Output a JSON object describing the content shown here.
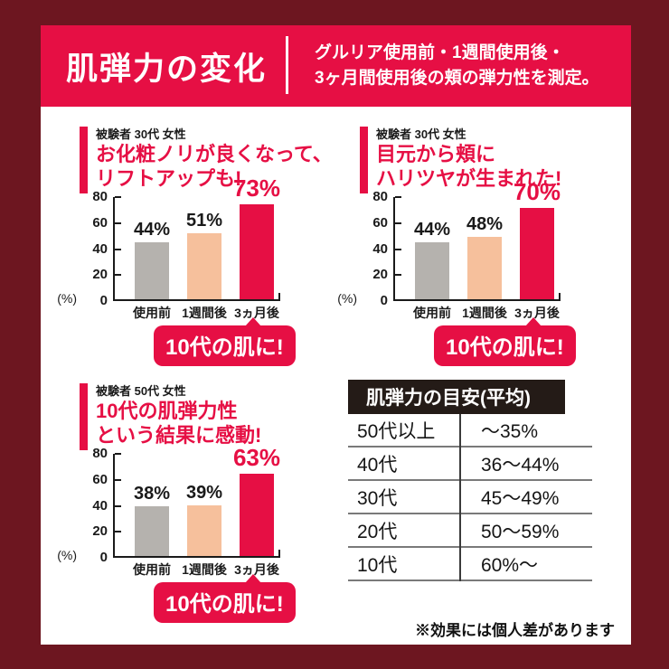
{
  "page": {
    "background_color": "#6d1620",
    "accent_color": "#e60f44",
    "bar_gray": "#b5b2ae",
    "bar_peach": "#f6c09c",
    "header": {
      "title": "肌弾力の変化",
      "description_lines": [
        "グルリア使用前・1週間使用後・",
        "3ヶ月間使用後の頬の弾力性を測定。"
      ]
    },
    "footnote": "※効果には個人差があります"
  },
  "chart_data": [
    {
      "type": "bar",
      "subject": "被験者 30代 女性",
      "title_lines": [
        "お化粧ノリが良くなって、",
        "リフトアップも!"
      ],
      "categories": [
        "使用前",
        "1週間後",
        "3ヵ月後"
      ],
      "values": [
        44,
        51,
        73
      ],
      "value_labels": [
        "44%",
        "51%",
        "73%"
      ],
      "bar_colors": [
        "#b5b2ae",
        "#f6c09c",
        "#e60f44"
      ],
      "ylabel": "(%)",
      "ylim": [
        0,
        80
      ],
      "y_ticks": [
        "80",
        "60",
        "40",
        "20",
        "0"
      ],
      "grid": false,
      "callout": "10代の肌に!"
    },
    {
      "type": "bar",
      "subject": "被験者 30代 女性",
      "title_lines": [
        "目元から頬に",
        "ハリツヤが生まれた!"
      ],
      "categories": [
        "使用前",
        "1週間後",
        "3ヵ月後"
      ],
      "values": [
        44,
        48,
        70
      ],
      "value_labels": [
        "44%",
        "48%",
        "70%"
      ],
      "bar_colors": [
        "#b5b2ae",
        "#f6c09c",
        "#e60f44"
      ],
      "ylabel": "(%)",
      "ylim": [
        0,
        80
      ],
      "y_ticks": [
        "80",
        "60",
        "40",
        "20",
        "0"
      ],
      "grid": false,
      "callout": "10代の肌に!"
    },
    {
      "type": "bar",
      "subject": "被験者 50代 女性",
      "title_lines": [
        "10代の肌弾力性",
        "という結果に感動!"
      ],
      "categories": [
        "使用前",
        "1週間後",
        "3ヵ月後"
      ],
      "values": [
        38,
        39,
        63
      ],
      "value_labels": [
        "38%",
        "39%",
        "63%"
      ],
      "bar_colors": [
        "#b5b2ae",
        "#f6c09c",
        "#e60f44"
      ],
      "ylabel": "(%)",
      "ylim": [
        0,
        80
      ],
      "y_ticks": [
        "80",
        "60",
        "40",
        "20",
        "0"
      ],
      "grid": false,
      "callout": "10代の肌に!"
    },
    {
      "type": "table",
      "title": "肌弾力の目安(平均)",
      "rows": [
        [
          "50代以上",
          "〜35%"
        ],
        [
          "40代",
          "36〜44%"
        ],
        [
          "30代",
          "45〜49%"
        ],
        [
          "20代",
          "50〜59%"
        ],
        [
          "10代",
          "60%〜"
        ]
      ]
    }
  ]
}
